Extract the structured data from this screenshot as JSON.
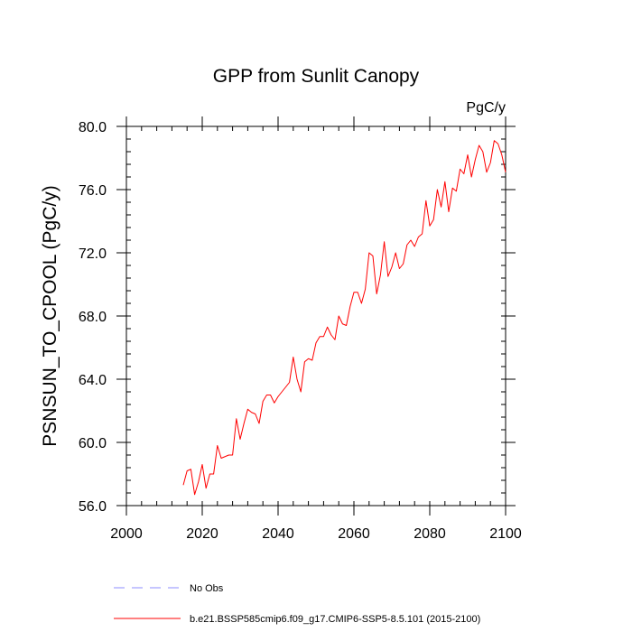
{
  "chart_data": {
    "type": "line",
    "title": "GPP from Sunlit Canopy",
    "units": "PgC/y",
    "ylabel": "PSNSUN_TO_CPOOL  (PgC/y)",
    "xlabel": "",
    "xlim": [
      2000,
      2100
    ],
    "ylim": [
      56.0,
      80.0
    ],
    "x_ticks": [
      2000,
      2020,
      2040,
      2060,
      2080,
      2100
    ],
    "x_tick_labels": [
      "2000",
      "2020",
      "2040",
      "2060",
      "2080",
      "2100"
    ],
    "y_ticks": [
      56,
      60,
      64,
      68,
      72,
      76,
      80
    ],
    "y_tick_labels": [
      "56.0",
      "60.0",
      "64.0",
      "68.0",
      "72.0",
      "76.0",
      "80.0"
    ],
    "grid": false,
    "legend_position": "bottom-left",
    "series": [
      {
        "name": "b.e21.BSSP585cmip6.f09_g17.CMIP6-SSP5-8.5.101 (2015-2100)",
        "color": "#ff0000",
        "style": "solid",
        "x": [
          2015,
          2016,
          2017,
          2018,
          2019,
          2020,
          2021,
          2022,
          2023,
          2024,
          2025,
          2026,
          2027,
          2028,
          2029,
          2030,
          2031,
          2032,
          2033,
          2034,
          2035,
          2036,
          2037,
          2038,
          2039,
          2040,
          2041,
          2042,
          2043,
          2044,
          2045,
          2046,
          2047,
          2048,
          2049,
          2050,
          2051,
          2052,
          2053,
          2054,
          2055,
          2056,
          2057,
          2058,
          2059,
          2060,
          2061,
          2062,
          2063,
          2064,
          2065,
          2066,
          2067,
          2068,
          2069,
          2070,
          2071,
          2072,
          2073,
          2074,
          2075,
          2076,
          2077,
          2078,
          2079,
          2080,
          2081,
          2082,
          2083,
          2084,
          2085,
          2086,
          2087,
          2088,
          2089,
          2090,
          2091,
          2092,
          2093,
          2094,
          2095,
          2096,
          2097,
          2098,
          2099,
          2100
        ],
        "values": [
          57.3,
          58.2,
          58.3,
          56.7,
          57.5,
          58.6,
          57.1,
          58.0,
          58.0,
          59.8,
          59.0,
          59.1,
          59.2,
          59.2,
          61.5,
          60.2,
          61.2,
          62.1,
          61.9,
          61.8,
          61.2,
          62.6,
          63.0,
          63.0,
          62.5,
          62.9,
          63.2,
          63.5,
          63.8,
          65.4,
          64.0,
          63.2,
          65.1,
          65.3,
          65.2,
          66.3,
          66.7,
          66.7,
          67.3,
          66.8,
          66.5,
          68.0,
          67.5,
          67.4,
          68.6,
          69.5,
          69.5,
          68.8,
          69.7,
          72.0,
          71.8,
          69.4,
          70.6,
          72.7,
          70.5,
          71.1,
          72.0,
          71.0,
          71.3,
          72.5,
          72.8,
          72.4,
          73.0,
          73.2,
          75.3,
          73.7,
          74.1,
          76.0,
          74.9,
          76.5,
          74.6,
          76.1,
          75.9,
          77.3,
          77.0,
          78.2,
          76.8,
          77.9,
          78.8,
          78.4,
          77.1,
          77.7,
          79.1,
          78.9,
          78.2,
          77.1
        ]
      }
    ],
    "legend": [
      {
        "label": "No Obs",
        "color": "#8c8cff",
        "style": "dashed"
      },
      {
        "label": "b.e21.BSSP585cmip6.f09_g17.CMIP6-SSP5-8.5.101 (2015-2100)",
        "color": "#ff0000",
        "style": "solid"
      }
    ]
  }
}
